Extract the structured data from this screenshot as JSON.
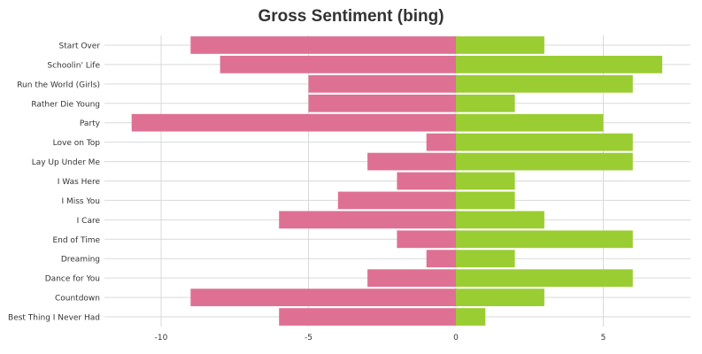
{
  "chart_data": {
    "type": "bar",
    "orientation": "horizontal",
    "title": "Gross Sentiment (bing)",
    "xlabel": "",
    "ylabel": "",
    "xlim": [
      -11.5,
      7.8
    ],
    "x_ticks": [
      -10,
      -5,
      0,
      5
    ],
    "x_tick_labels": [
      "-10",
      "-5",
      "0",
      "5"
    ],
    "grid": true,
    "legend": "none",
    "categories": [
      "Start Over",
      "Schoolin' Life",
      "Run the World (Girls)",
      "Rather Die Young",
      "Party",
      "Love on Top",
      "Lay Up Under Me",
      "I Was Here",
      "I Miss You",
      "I Care",
      "End of Time",
      "Dreaming",
      "Dance for You",
      "Countdown",
      "Best Thing I Never Had"
    ],
    "series": [
      {
        "color": "#de7193",
        "values": [
          -9,
          -8,
          -5,
          -5,
          -11,
          -1,
          -3,
          -2,
          -4,
          -6,
          -2,
          -1,
          -3,
          -9,
          -6
        ]
      },
      {
        "color": "#9acd32",
        "values": [
          3,
          7,
          6,
          2,
          5,
          6,
          6,
          2,
          2,
          3,
          6,
          2,
          6,
          3,
          1
        ]
      }
    ]
  }
}
